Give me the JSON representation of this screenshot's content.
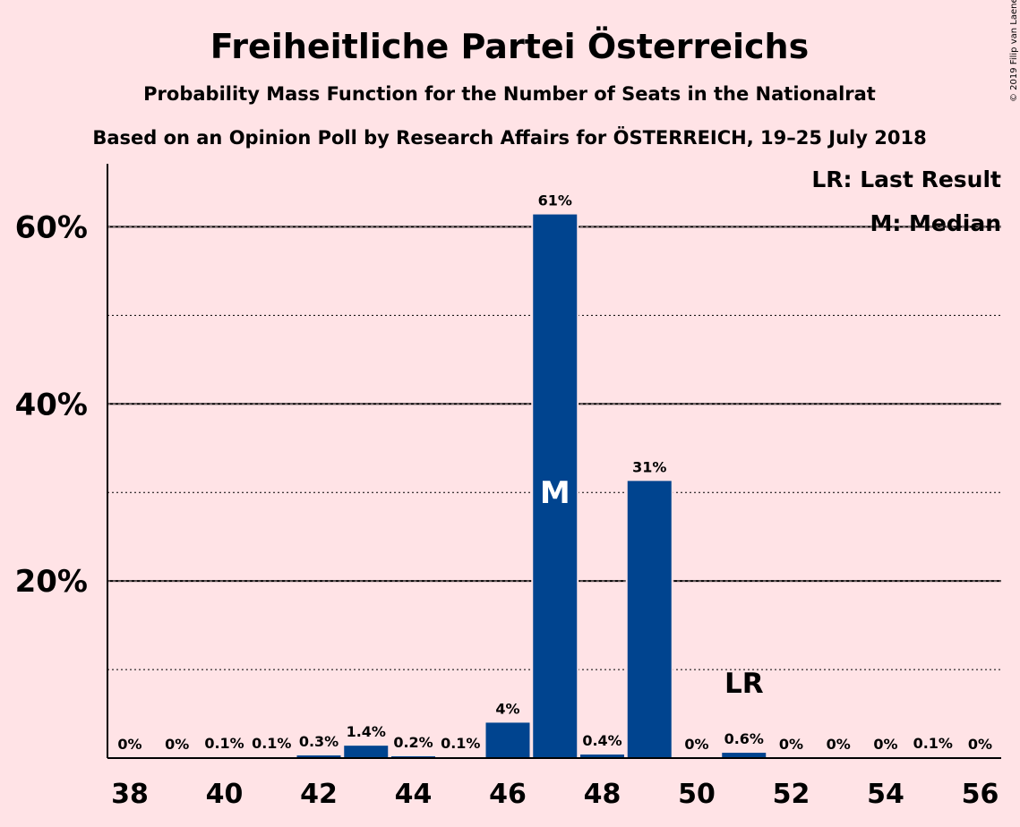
{
  "chart_data": {
    "type": "bar",
    "title": "Freiheitliche Partei Österreichs",
    "subtitle_1": "Probability Mass Function for the Number of Seats in the Nationalrat",
    "subtitle_2": "Based on an Opinion Poll by Research Affairs for ÖSTERREICH, 19–25 July 2018",
    "copyright": "© 2019 Filip van Laenen",
    "legend": {
      "last_result": "LR: Last Result",
      "median": "M: Median",
      "placement": "top-right"
    },
    "categories": [
      38,
      39,
      40,
      41,
      42,
      43,
      44,
      45,
      46,
      47,
      48,
      49,
      50,
      51,
      52,
      53,
      54,
      55,
      56
    ],
    "x_tick_labels": [
      "38",
      "40",
      "42",
      "44",
      "46",
      "48",
      "50",
      "52",
      "54",
      "56"
    ],
    "values": [
      0,
      0,
      0.1,
      0.1,
      0.3,
      1.4,
      0.2,
      0.1,
      4.0,
      61.4,
      0.4,
      31.3,
      0,
      0.6,
      0,
      0,
      0,
      0.1,
      0
    ],
    "data_labels": [
      "0%",
      "0%",
      "0.1%",
      "0.1%",
      "0.3%",
      "1.4%",
      "0.2%",
      "0.1%",
      "4%",
      "61%",
      "0.4%",
      "31%",
      "0%",
      "0.6%",
      "0%",
      "0%",
      "0%",
      "0.1%",
      "0%"
    ],
    "ylim": [
      0,
      67
    ],
    "y_ticks": [
      {
        "value": 20,
        "label": "20%"
      },
      {
        "value": 40,
        "label": "40%"
      },
      {
        "value": 60,
        "label": "60%"
      }
    ],
    "y_minor_gridlines": [
      10,
      30,
      50
    ],
    "median_seat": 47,
    "median_marker": "M",
    "last_result_seat": 51,
    "last_result_marker": "LR",
    "bar_color": "#00448F",
    "background_color": "#FFE3E6",
    "grid": true
  }
}
